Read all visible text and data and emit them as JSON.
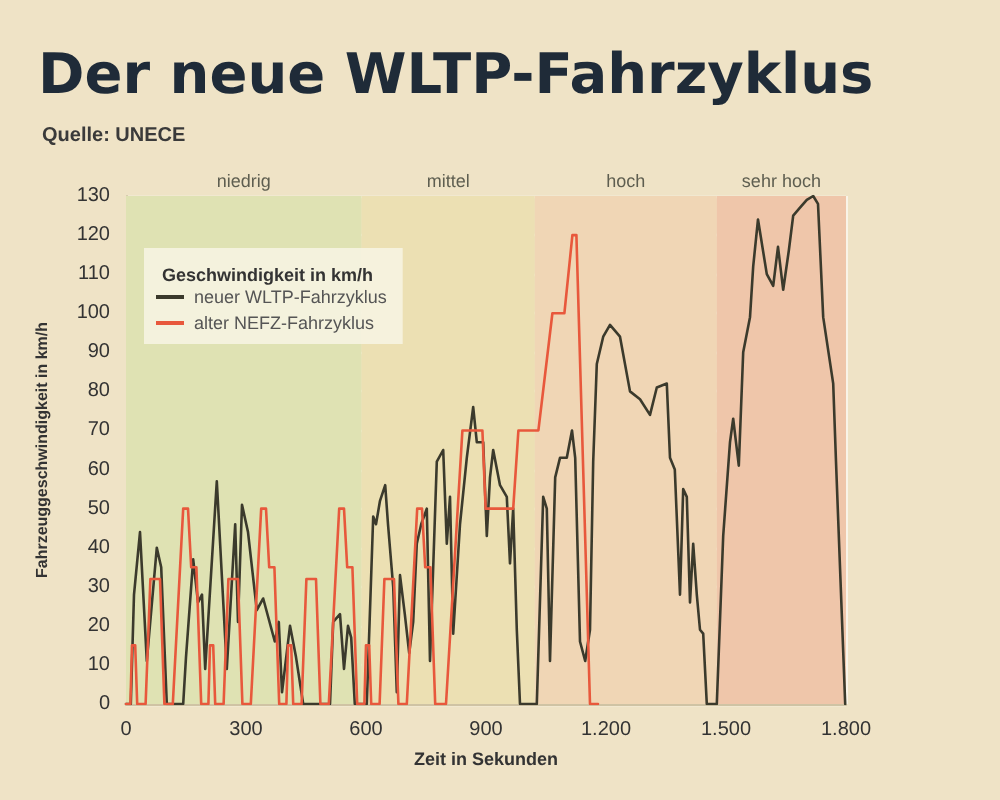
{
  "chart_data": {
    "type": "line",
    "title": "Der neue WLTP-Fahrzyklus",
    "annotations": [
      "Quelle: UNECE"
    ],
    "xlabel": "Zeit in Sekunden",
    "ylabel": "Fahrzeuggeschwindigkeit in km/h",
    "legend_title": "Geschwindigkeit in km/h",
    "xlim": [
      0,
      1800
    ],
    "xticks": [
      0,
      300,
      600,
      900,
      {
        "value": 1200,
        "label": "1.200"
      },
      {
        "value": 1500,
        "label": "1.500"
      },
      {
        "value": 1800,
        "label": "1.800"
      }
    ],
    "ylim": [
      0,
      130
    ],
    "yticks": [
      0,
      10,
      20,
      30,
      40,
      50,
      60,
      70,
      80,
      90,
      100,
      110,
      120,
      130
    ],
    "grid": true,
    "legend": "top left",
    "line_style": "solid",
    "bands": [
      {
        "axis": "x",
        "from": 0,
        "to": 589,
        "label": "niedrig",
        "color": "#dfe2b3"
      },
      {
        "axis": "x",
        "from": 589,
        "to": 1022,
        "label": "mittel",
        "color": "#ece0b3"
      },
      {
        "axis": "x",
        "from": 1022,
        "to": 1477,
        "label": "hoch",
        "color": "#f0d6b5"
      },
      {
        "axis": "x",
        "from": 1477,
        "to": 1800,
        "label": "sehr hoch",
        "color": "#efc6aa"
      }
    ],
    "series": [
      {
        "name": "neuer WLTP-Fahrzyklus",
        "color": "#3b3a2c",
        "x": [
          0,
          12,
          20,
          35,
          52,
          77,
          88,
          102,
          143,
          150,
          168,
          180,
          190,
          198,
          227,
          252,
          273,
          280,
          290,
          305,
          327,
          343,
          372,
          382,
          390,
          410,
          425,
          443,
          510,
          518,
          535,
          545,
          555,
          563,
          572,
          602,
          618,
          625,
          635,
          648,
          655,
          668,
          677,
          685,
          697,
          708,
          718,
          727,
          738,
          752,
          760,
          777,
          793,
          802,
          810,
          818,
          835,
          852,
          868,
          877,
          893,
          902,
          910,
          918,
          935,
          952,
          960,
          968,
          977,
          985,
          1027,
          1043,
          1052,
          1060,
          1073,
          1085,
          1102,
          1115,
          1123,
          1135,
          1148,
          1160,
          1168,
          1177,
          1193,
          1210,
          1235,
          1260,
          1285,
          1310,
          1327,
          1352,
          1360,
          1372,
          1385,
          1393,
          1402,
          1410,
          1418,
          1427,
          1435,
          1443,
          1452,
          1477,
          1493,
          1510,
          1518,
          1532,
          1543,
          1560,
          1568,
          1580,
          1602,
          1618,
          1630,
          1643,
          1657,
          1668,
          1685,
          1702,
          1718,
          1730,
          1743,
          1768,
          1775,
          1798
        ],
        "values": [
          0,
          0,
          28,
          44,
          11,
          40,
          35,
          0,
          0,
          12,
          37,
          26,
          28,
          9,
          57,
          9,
          46,
          21,
          51,
          44,
          24,
          27,
          16,
          21,
          3,
          20,
          12,
          0,
          0,
          21,
          23,
          9,
          20,
          17,
          0,
          0,
          48,
          46,
          52,
          56,
          46,
          30,
          3,
          33,
          23,
          13,
          21,
          41,
          46,
          50,
          11,
          62,
          65,
          41,
          53,
          18,
          46,
          63,
          76,
          67,
          67,
          43,
          58,
          65,
          56,
          53,
          36,
          50,
          19,
          0,
          0,
          53,
          50,
          11,
          58,
          63,
          63,
          70,
          63,
          16,
          11,
          19,
          62,
          87,
          94,
          97,
          94,
          80,
          78,
          74,
          81,
          82,
          63,
          60,
          28,
          55,
          53,
          26,
          41,
          28,
          19,
          18,
          0,
          0,
          43,
          67,
          73,
          61,
          90,
          99,
          112,
          124,
          110,
          107,
          117,
          106,
          116,
          125,
          127,
          129,
          130,
          128,
          99,
          82,
          62,
          0
        ]
      },
      {
        "name": "alter NEFZ-Fahrzyklus",
        "color": "#e8583c",
        "x": [
          0,
          11,
          15,
          23,
          28,
          49,
          61,
          85,
          96,
          117,
          143,
          155,
          163,
          176,
          188,
          195,
          206,
          210,
          218,
          223,
          244,
          256,
          280,
          291,
          312,
          338,
          350,
          358,
          371,
          383,
          390,
          401,
          405,
          413,
          418,
          439,
          451,
          475,
          486,
          507,
          533,
          545,
          553,
          566,
          578,
          585,
          596,
          600,
          608,
          613,
          634,
          646,
          670,
          681,
          702,
          728,
          740,
          748,
          761,
          773,
          780,
          800,
          841,
          891,
          899,
          968,
          981,
          1031,
          1066,
          1096,
          1116,
          1126,
          1160,
          1180
        ],
        "values": [
          0,
          0,
          15,
          15,
          0,
          0,
          32,
          32,
          0,
          0,
          50,
          50,
          35,
          35,
          0,
          0,
          0,
          15,
          15,
          0,
          0,
          32,
          32,
          0,
          0,
          50,
          50,
          35,
          35,
          0,
          0,
          0,
          15,
          15,
          0,
          0,
          32,
          32,
          0,
          0,
          50,
          50,
          35,
          35,
          0,
          0,
          0,
          15,
          15,
          0,
          0,
          32,
          32,
          0,
          0,
          50,
          50,
          35,
          35,
          0,
          0,
          0,
          70,
          70,
          50,
          50,
          70,
          70,
          100,
          100,
          120,
          120,
          0,
          0
        ]
      }
    ]
  }
}
